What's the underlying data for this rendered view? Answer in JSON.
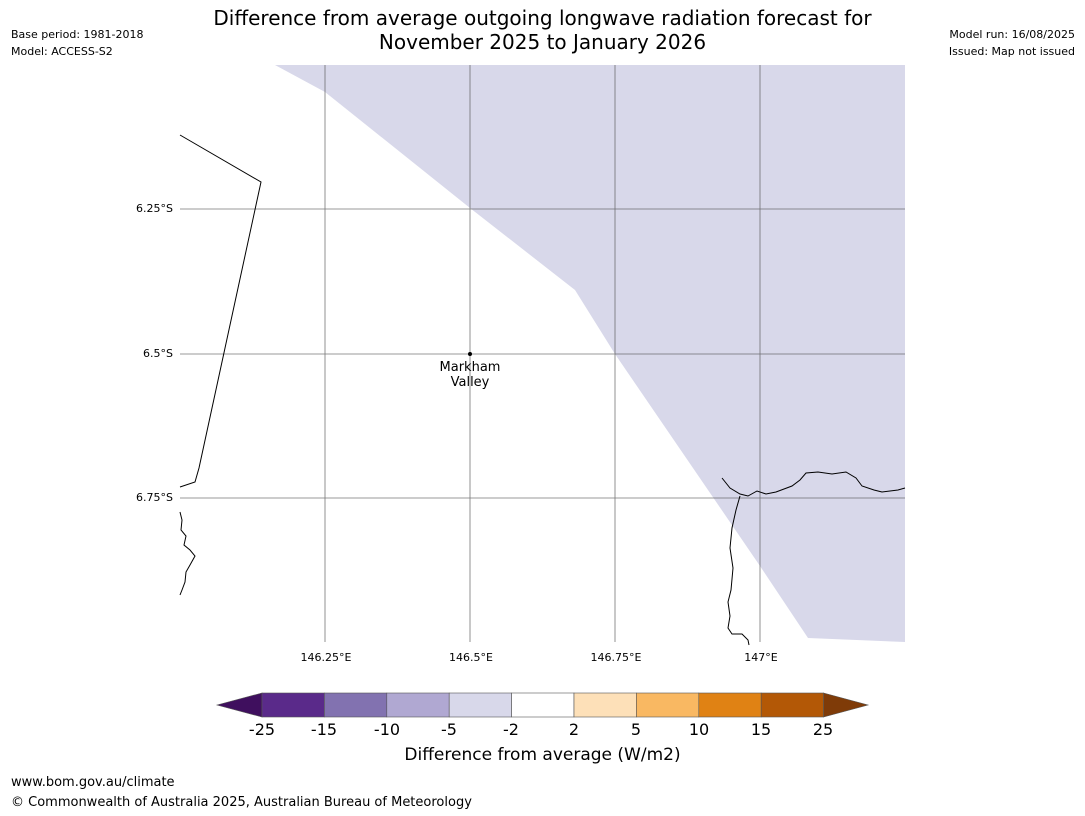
{
  "title": {
    "line1": "Difference from average outgoing longwave radiation forecast for",
    "line2": "November 2025 to January 2026"
  },
  "meta_left": {
    "base_period": "Base period: 1981-2018",
    "model": "Model: ACCESS-S2"
  },
  "meta_right": {
    "model_run": "Model run: 16/08/2025",
    "issued": "Issued: Map not issued"
  },
  "map": {
    "lat_labels": [
      "6.25°S",
      "6.5°S",
      "6.75°S"
    ],
    "lon_labels": [
      "146.25°E",
      "146.5°E",
      "146.75°E",
      "147°E"
    ],
    "place": {
      "name_line1": "Markham",
      "name_line2": "Valley"
    },
    "shaded_category": "-5 to -2",
    "shade_color": "#d8d8ea"
  },
  "colorbar": {
    "ticks": [
      "-25",
      "-15",
      "-10",
      "-5",
      "-2",
      "2",
      "5",
      "10",
      "15",
      "25"
    ],
    "colors": [
      "#3f0f5e",
      "#5a2a8a",
      "#8272b0",
      "#b0a8d2",
      "#d8d8ea",
      "#ffffff",
      "#fde0b8",
      "#f9b862",
      "#e08214",
      "#b35806",
      "#7f3b08"
    ],
    "label": "Difference from average (W/m2)"
  },
  "footer": {
    "url": "www.bom.gov.au/climate",
    "copyright": "© Commonwealth of Australia 2025, Australian Bureau of Meteorology"
  }
}
